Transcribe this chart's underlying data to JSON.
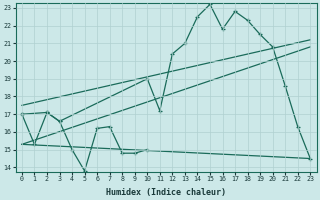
{
  "xlabel": "Humidex (Indice chaleur)",
  "bg_color": "#cce8e8",
  "grid_color": "#b0d0d0",
  "line_color": "#1a6b5a",
  "xlim": [
    -0.5,
    23.5
  ],
  "ylim": [
    13.75,
    23.25
  ],
  "yticks": [
    14,
    15,
    16,
    17,
    18,
    19,
    20,
    21,
    22,
    23
  ],
  "xticks": [
    0,
    1,
    2,
    3,
    4,
    5,
    6,
    7,
    8,
    9,
    10,
    11,
    12,
    13,
    14,
    15,
    16,
    17,
    18,
    19,
    20,
    21,
    22,
    23
  ],
  "curve1_x": [
    0,
    1,
    2,
    3,
    4,
    5,
    6,
    7,
    8,
    9,
    10
  ],
  "curve1_y": [
    17.0,
    15.3,
    17.1,
    16.6,
    15.0,
    13.8,
    16.2,
    16.3,
    14.8,
    14.8,
    15.0
  ],
  "curve2_x": [
    0,
    2,
    3,
    10,
    11,
    12,
    13,
    14,
    15,
    16,
    17,
    18,
    19,
    20,
    21,
    22,
    23
  ],
  "curve2_y": [
    17.0,
    17.1,
    16.6,
    19.0,
    17.2,
    20.4,
    21.0,
    22.5,
    23.2,
    21.8,
    22.8,
    22.3,
    21.5,
    20.8,
    18.6,
    16.3,
    14.5
  ],
  "trend1_x": [
    0,
    23
  ],
  "trend1_y": [
    17.5,
    21.2
  ],
  "trend2_x": [
    0,
    23
  ],
  "trend2_y": [
    15.3,
    20.8
  ],
  "trend3_x": [
    0,
    23
  ],
  "trend3_y": [
    15.3,
    14.5
  ]
}
